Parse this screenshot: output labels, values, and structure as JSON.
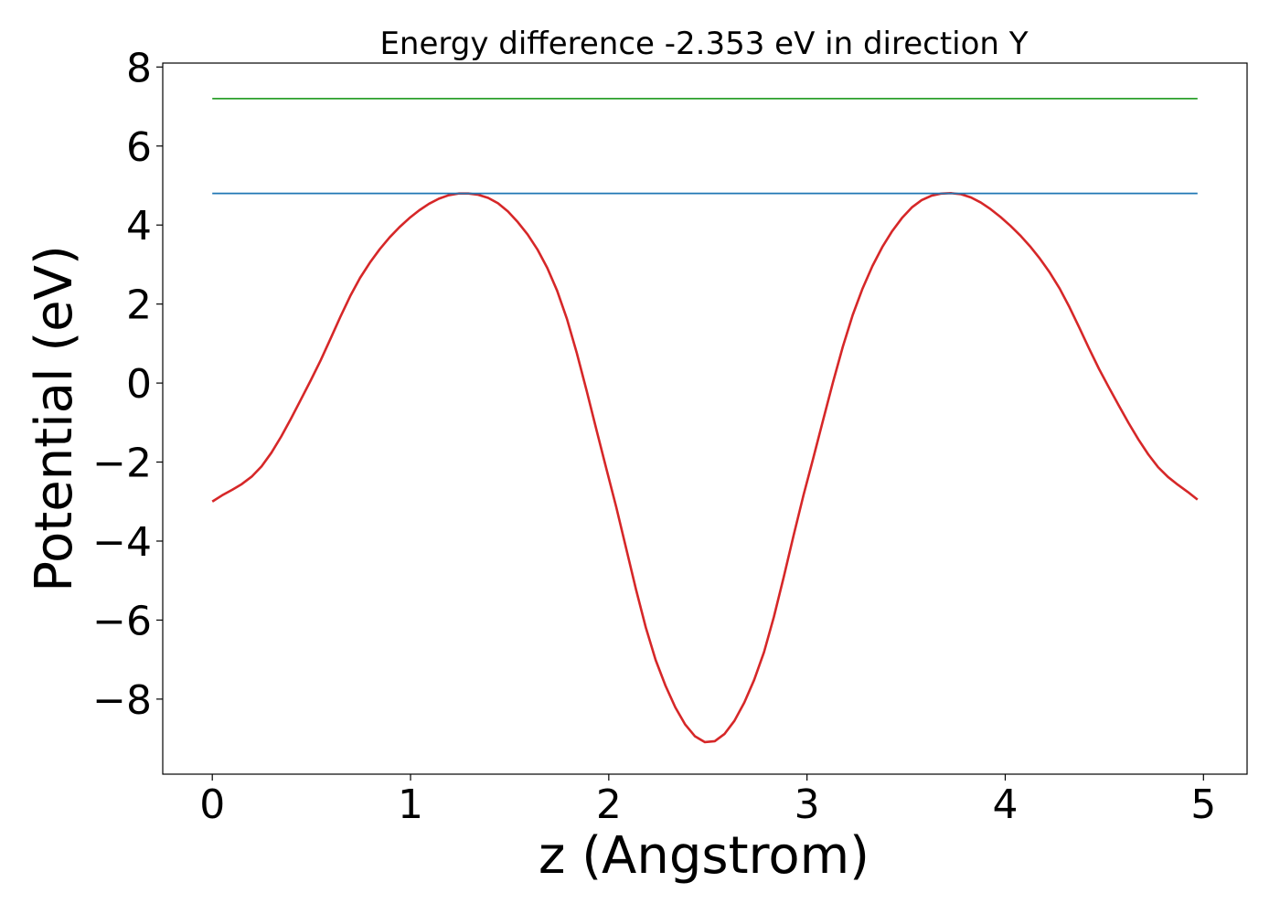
{
  "chart_data": {
    "type": "line",
    "title": "Energy difference -2.353 eV in direction Y",
    "xlabel": "z (Angstrom)",
    "ylabel": "Potential (eV)",
    "xlim": [
      -0.25,
      5.22
    ],
    "ylim": [
      -9.9,
      8.1
    ],
    "xticks": [
      0,
      1,
      2,
      3,
      4,
      5
    ],
    "xtick_labels": [
      "0",
      "1",
      "2",
      "3",
      "4",
      "5"
    ],
    "yticks": [
      -8,
      -6,
      -4,
      -2,
      0,
      2,
      4,
      6,
      8
    ],
    "ytick_labels": [
      "−8",
      "−6",
      "−4",
      "−2",
      "0",
      "2",
      "4",
      "6",
      "8"
    ],
    "grid": false,
    "series": [
      {
        "color": "#d62728",
        "x": [
          0,
          0.25,
          0.5,
          0.75,
          1.0,
          1.25,
          1.5,
          1.75,
          2.0,
          2.25,
          2.5,
          2.75,
          3.0,
          3.25,
          3.5,
          3.75,
          4.0,
          4.25,
          4.5,
          4.75,
          4.97
        ],
        "y": [
          -3.0,
          -2.1,
          0.1,
          2.7,
          4.2,
          4.8,
          4.3,
          2.2,
          -2.4,
          -7.2,
          -9.1,
          -7.3,
          -2.5,
          2.0,
          4.3,
          4.8,
          4.1,
          2.6,
          0.1,
          -2.0,
          -2.95
        ]
      },
      {
        "color": "#1f77b4",
        "x": [
          0,
          4.97
        ],
        "y": [
          4.8,
          4.8
        ]
      },
      {
        "color": "#2ca02c",
        "x": [
          0,
          4.97
        ],
        "y": [
          7.2,
          7.2
        ]
      }
    ]
  }
}
